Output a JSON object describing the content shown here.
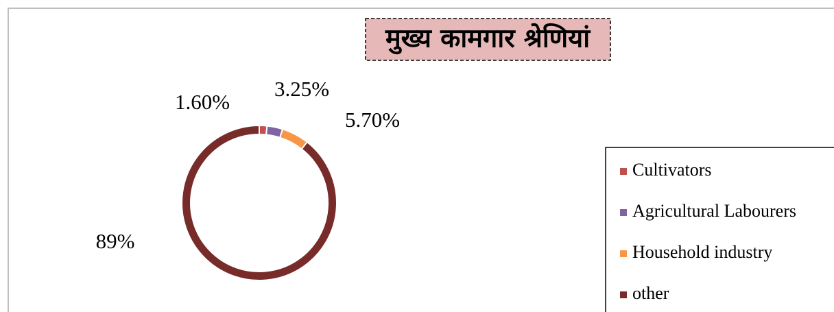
{
  "chart_data": {
    "type": "donut",
    "title": "मुख्य कामगार श्रेणियां",
    "categories": [
      "Cultivators",
      "Agricultural Labourers",
      "Household industry",
      "other"
    ],
    "values": [
      1.6,
      3.25,
      5.7,
      89
    ],
    "value_labels": [
      "1.60%",
      "3.25%",
      "5.70%",
      "89%"
    ],
    "colors": [
      "#c0504d",
      "#8064a2",
      "#f79646",
      "#772c2a"
    ],
    "legend": "right"
  }
}
